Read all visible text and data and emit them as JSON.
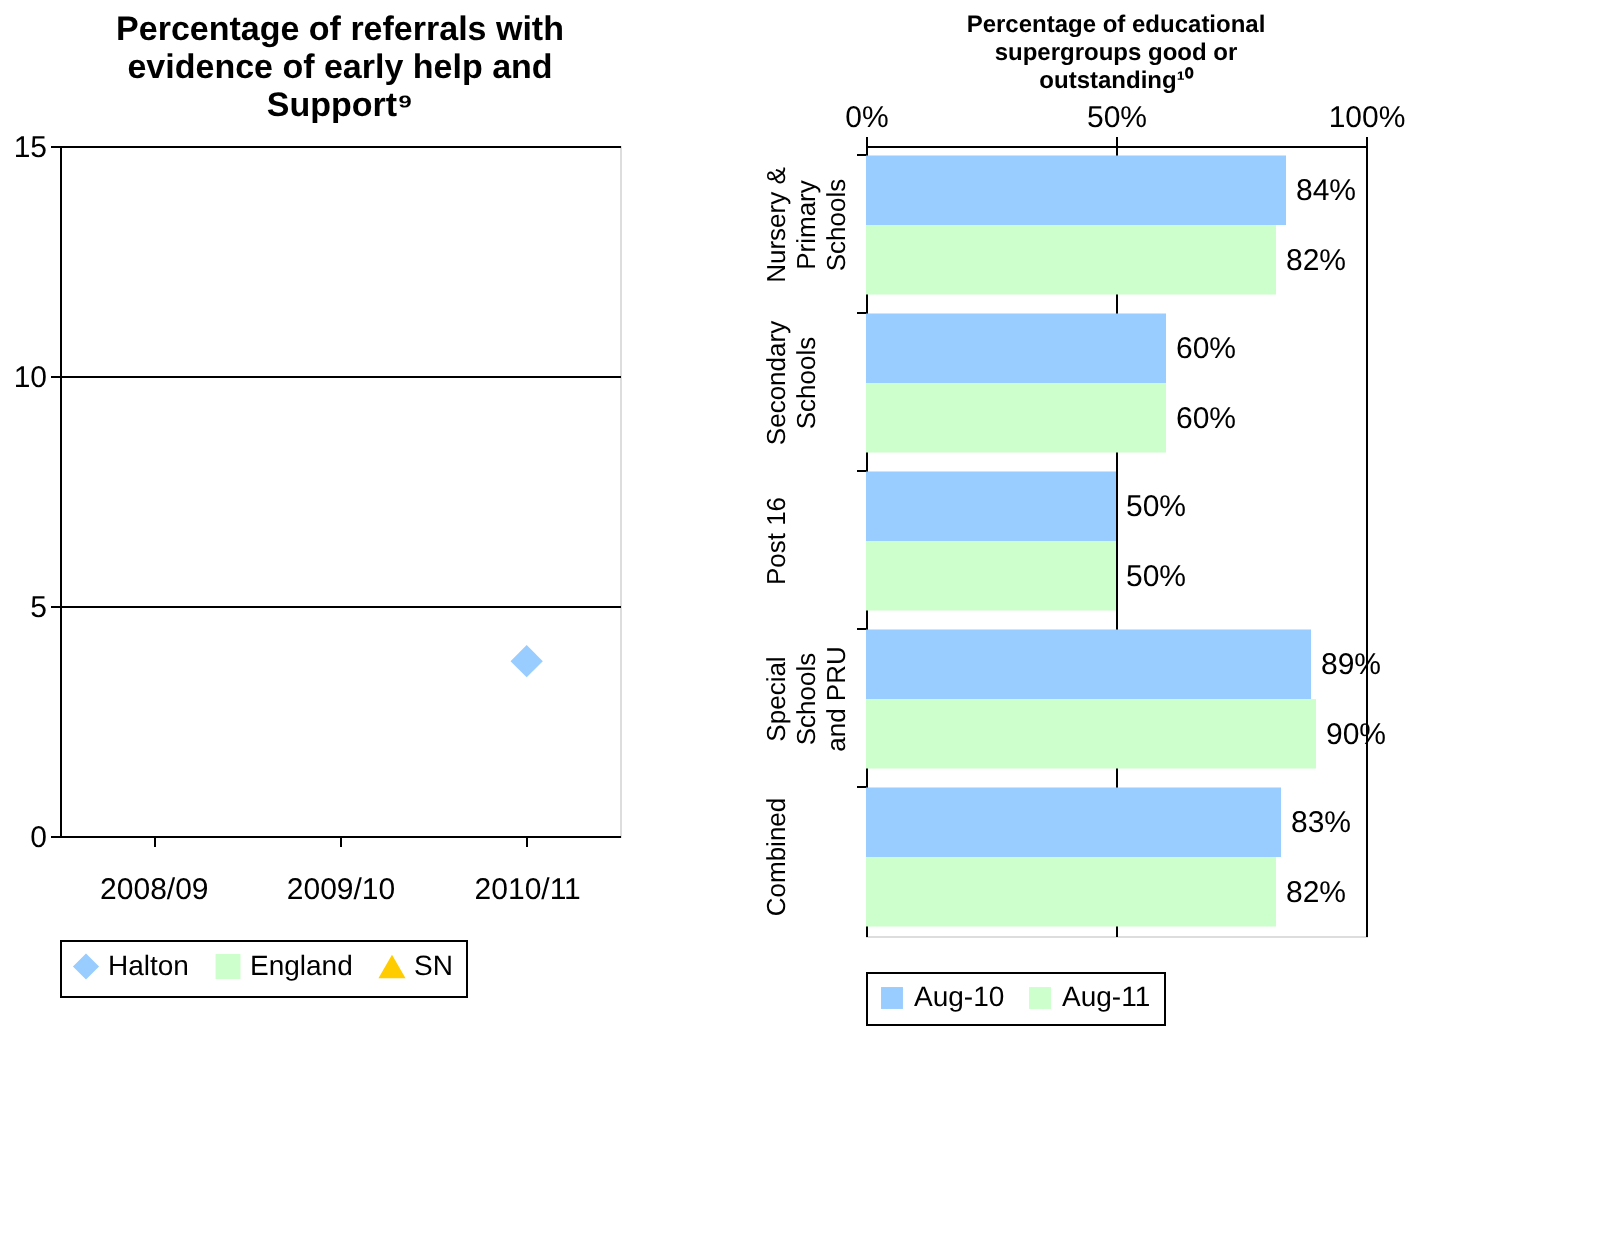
{
  "chart_data": [
    {
      "type": "line",
      "title": "Percentage of referrals with evidence of early help and Support⁹",
      "categories": [
        "2008/09",
        "2009/10",
        "2010/11"
      ],
      "series": [
        {
          "name": "Halton",
          "color": "#99ccff",
          "marker": "diamond",
          "values": [
            null,
            null,
            3.8
          ]
        },
        {
          "name": "England",
          "color": "#ccffcc",
          "marker": "square",
          "values": [
            null,
            null,
            null
          ]
        },
        {
          "name": "SN",
          "color": "#ffcc00",
          "marker": "triangle",
          "values": [
            null,
            null,
            null
          ]
        }
      ],
      "ylim": [
        0,
        15
      ],
      "yticks": [
        0,
        5,
        10,
        15
      ],
      "grid": "y",
      "legend": "bottom"
    },
    {
      "type": "bar",
      "orientation": "horizontal",
      "title": "Percentage of educational supergroups good or outstanding¹⁰",
      "categories": [
        "Nursery & Primary Schools",
        "Secondary Schools",
        "Post 16",
        "Special Schools and PRU",
        "Combined"
      ],
      "series": [
        {
          "name": "Aug-10",
          "color": "#99ccff",
          "values": [
            84,
            60,
            50,
            89,
            83
          ],
          "value_labels": [
            "84%",
            "60%",
            "50%",
            "89%",
            "83%"
          ]
        },
        {
          "name": "Aug-11",
          "color": "#ccffcc",
          "values": [
            82,
            60,
            50,
            90,
            82
          ],
          "value_labels": [
            "82%",
            "60%",
            "50%",
            "90%",
            "82%"
          ]
        }
      ],
      "xlim": [
        0,
        100
      ],
      "xticks": [
        {
          "value": 0,
          "label": "0%"
        },
        {
          "value": 50,
          "label": "50%"
        },
        {
          "value": 100,
          "label": "100%"
        }
      ],
      "grid": "x",
      "legend": "bottom"
    }
  ]
}
